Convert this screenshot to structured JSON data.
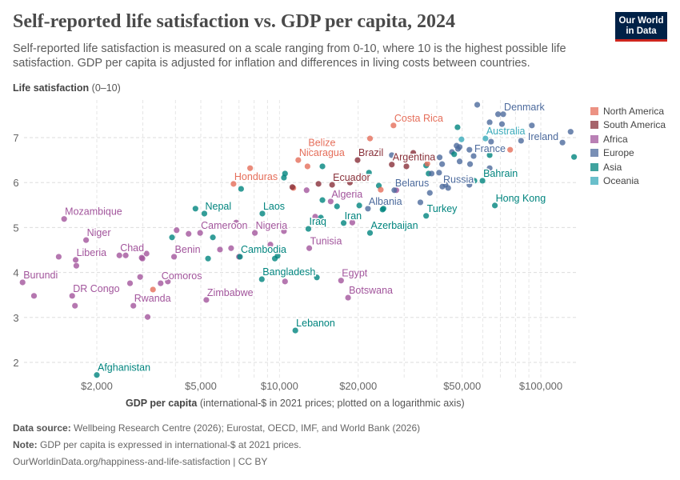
{
  "header": {
    "title": "Self-reported life satisfaction vs. GDP per capita, 2024",
    "subtitle": "Self-reported life satisfaction is measured on a scale ranging from 0-10, where 10 is the highest possible life satisfaction. GDP per capita is adjusted for inflation and differences in living costs between countries.",
    "logo": "Our World in Data"
  },
  "footer": {
    "source_label": "Data source:",
    "source": "Wellbeing Research Centre (2026); Eurostat, OECD, IMF, and World Bank (2026)",
    "note_label": "Note:",
    "note": "GDP per capita is expressed in international-$ at 2021 prices.",
    "url": "OurWorldinData.org/happiness-and-life-satisfaction | CC BY"
  },
  "chart_data": {
    "type": "scatter",
    "title": "Self-reported life satisfaction vs. GDP per capita, 2024",
    "ylabel_bold": "Life satisfaction",
    "ylabel_rest": "(0–10)",
    "xlabel_bold": "GDP per capita",
    "xlabel_rest": "(international-$ in 2021 prices; plotted on a logarithmic axis)",
    "x_scale": "log",
    "xlim": [
      980,
      136000
    ],
    "ylim": [
      1.6,
      7.85
    ],
    "grid": true,
    "legend_position": "right",
    "x_ticks": [
      {
        "v": 2000,
        "label": "$2,000"
      },
      {
        "v": 5000,
        "label": "$5,000"
      },
      {
        "v": 10000,
        "label": "$10,000"
      },
      {
        "v": 20000,
        "label": "$20,000"
      },
      {
        "v": 50000,
        "label": "$50,000"
      },
      {
        "v": 100000,
        "label": "$100,000"
      }
    ],
    "y_ticks": [
      {
        "v": 2,
        "label": "2"
      },
      {
        "v": 3,
        "label": "3"
      },
      {
        "v": 4,
        "label": "4"
      },
      {
        "v": 5,
        "label": "5"
      },
      {
        "v": 6,
        "label": "6"
      },
      {
        "v": 7,
        "label": "7"
      }
    ],
    "regions": [
      {
        "key": "NA",
        "name": "North America",
        "color": "#E56E5A"
      },
      {
        "key": "SA",
        "name": "South America",
        "color": "#883039"
      },
      {
        "key": "AF",
        "name": "Africa",
        "color": "#A2559C"
      },
      {
        "key": "EU",
        "name": "Europe",
        "color": "#4C6A9C"
      },
      {
        "key": "AS",
        "name": "Asia",
        "color": "#00847E"
      },
      {
        "key": "OC",
        "name": "Oceania",
        "color": "#38AABA"
      }
    ],
    "points": [
      {
        "label": "Mozambique",
        "r": "AF",
        "x": 1500,
        "y": 5.19
      },
      {
        "label": "Niger",
        "r": "AF",
        "x": 1820,
        "y": 4.72
      },
      {
        "label": "Liberia",
        "r": "AF",
        "x": 1660,
        "y": 4.28
      },
      {
        "label": "Burundi",
        "r": "AF",
        "x": 1040,
        "y": 3.78
      },
      {
        "label": "DR Congo",
        "r": "AF",
        "x": 1610,
        "y": 3.48
      },
      {
        "label": "Chad",
        "r": "AF",
        "x": 2440,
        "y": 4.38
      },
      {
        "label": "Rwanda",
        "r": "AF",
        "x": 2760,
        "y": 3.26
      },
      {
        "label": "Comoros",
        "r": "AF",
        "x": 3510,
        "y": 3.76
      },
      {
        "label": "Benin",
        "r": "AF",
        "x": 3950,
        "y": 4.35
      },
      {
        "label": "Cameroon",
        "r": "AF",
        "x": 4970,
        "y": 4.88
      },
      {
        "label": "Nepal",
        "r": "AS",
        "x": 5160,
        "y": 5.31
      },
      {
        "label": "Zimbabwe",
        "r": "AF",
        "x": 5250,
        "y": 3.39
      },
      {
        "label": "Cambodia",
        "r": "AS",
        "x": 7060,
        "y": 4.35
      },
      {
        "label": "Afghanistan",
        "r": "AS",
        "x": 2000,
        "y": 1.72
      },
      {
        "label": "Laos",
        "r": "AS",
        "x": 8600,
        "y": 5.31
      },
      {
        "label": "Nigeria",
        "r": "AF",
        "x": 8050,
        "y": 4.88
      },
      {
        "label": "Honduras",
        "r": "NA",
        "x": 6670,
        "y": 5.97
      },
      {
        "label": "Nicaragua",
        "r": "NA",
        "x": 11800,
        "y": 6.5
      },
      {
        "label": "Belize",
        "r": "NA",
        "x": 12800,
        "y": 6.72
      },
      {
        "label": "Brazil",
        "r": "SA",
        "x": 19900,
        "y": 6.5
      },
      {
        "label": "Ecuador",
        "r": "SA",
        "x": 15900,
        "y": 5.95
      },
      {
        "label": "Algeria",
        "r": "AF",
        "x": 15700,
        "y": 5.58
      },
      {
        "label": "Iraq",
        "r": "AS",
        "x": 12900,
        "y": 4.97
      },
      {
        "label": "Iran",
        "r": "AS",
        "x": 17600,
        "y": 5.1
      },
      {
        "label": "Tunisia",
        "r": "AF",
        "x": 13000,
        "y": 4.54
      },
      {
        "label": "Bangladesh",
        "r": "AS",
        "x": 8560,
        "y": 3.85
      },
      {
        "label": "Egypt",
        "r": "AF",
        "x": 17200,
        "y": 3.82
      },
      {
        "label": "Botswana",
        "r": "AF",
        "x": 18300,
        "y": 3.44
      },
      {
        "label": "Lebanon",
        "r": "AS",
        "x": 11500,
        "y": 2.71
      },
      {
        "label": "Albania",
        "r": "EU",
        "x": 21800,
        "y": 5.42
      },
      {
        "label": "Azerbaijan",
        "r": "AS",
        "x": 22200,
        "y": 4.88
      },
      {
        "label": "Costa Rica",
        "r": "NA",
        "x": 27300,
        "y": 7.27
      },
      {
        "label": "Argentina",
        "r": "SA",
        "x": 26900,
        "y": 6.4
      },
      {
        "label": "Belarus",
        "r": "EU",
        "x": 27500,
        "y": 5.83
      },
      {
        "label": "Turkey",
        "r": "AS",
        "x": 36400,
        "y": 5.26
      },
      {
        "label": "Russia",
        "r": "EU",
        "x": 42000,
        "y": 5.91
      },
      {
        "label": "Bahrain",
        "r": "AS",
        "x": 59800,
        "y": 6.04
      },
      {
        "label": "Hong Kong",
        "r": "AS",
        "x": 66700,
        "y": 5.49
      },
      {
        "label": "France",
        "r": "EU",
        "x": 55300,
        "y": 6.59
      },
      {
        "label": "Australia",
        "r": "OC",
        "x": 61400,
        "y": 6.98
      },
      {
        "label": "Denmark",
        "r": "EU",
        "x": 71800,
        "y": 7.52
      },
      {
        "label": "Ireland",
        "r": "EU",
        "x": 121000,
        "y": 6.89
      },
      {
        "r": "AF",
        "x": 1430,
        "y": 4.35
      },
      {
        "r": "AF",
        "x": 1670,
        "y": 4.15
      },
      {
        "r": "AF",
        "x": 1150,
        "y": 3.48
      },
      {
        "r": "AF",
        "x": 1650,
        "y": 3.26
      },
      {
        "r": "AF",
        "x": 2580,
        "y": 4.38
      },
      {
        "r": "AF",
        "x": 2970,
        "y": 4.33
      },
      {
        "r": "AF",
        "x": 2990,
        "y": 4.31
      },
      {
        "r": "AF",
        "x": 3100,
        "y": 4.42
      },
      {
        "r": "AF",
        "x": 2680,
        "y": 3.76
      },
      {
        "r": "AF",
        "x": 2930,
        "y": 3.9
      },
      {
        "r": "AF",
        "x": 3130,
        "y": 3.01
      },
      {
        "r": "NA",
        "x": 3280,
        "y": 3.62
      },
      {
        "r": "AF",
        "x": 3740,
        "y": 3.8
      },
      {
        "r": "AF",
        "x": 4040,
        "y": 4.94
      },
      {
        "r": "AS",
        "x": 3880,
        "y": 4.78
      },
      {
        "r": "AF",
        "x": 4490,
        "y": 4.86
      },
      {
        "r": "AS",
        "x": 4770,
        "y": 5.42
      },
      {
        "r": "AS",
        "x": 5560,
        "y": 4.78
      },
      {
        "r": "AS",
        "x": 5330,
        "y": 4.31
      },
      {
        "r": "AF",
        "x": 5920,
        "y": 4.51
      },
      {
        "r": "AF",
        "x": 6530,
        "y": 4.54
      },
      {
        "r": "AF",
        "x": 6830,
        "y": 5.11
      },
      {
        "r": "AF",
        "x": 7000,
        "y": 4.35
      },
      {
        "r": "AS",
        "x": 7130,
        "y": 5.86
      },
      {
        "r": "NA",
        "x": 7720,
        "y": 6.32
      },
      {
        "r": "NA",
        "x": 12800,
        "y": 6.36
      },
      {
        "r": "AS",
        "x": 14600,
        "y": 6.36
      },
      {
        "r": "AS",
        "x": 10500,
        "y": 6.2
      },
      {
        "r": "AS",
        "x": 10400,
        "y": 6.11
      },
      {
        "r": "SA",
        "x": 14100,
        "y": 5.97
      },
      {
        "r": "SA",
        "x": 18600,
        "y": 6.0
      },
      {
        "r": "EU",
        "x": 15900,
        "y": 6.66
      },
      {
        "r": "NA",
        "x": 22200,
        "y": 6.98
      },
      {
        "r": "EU",
        "x": 20800,
        "y": 6.13
      },
      {
        "r": "AS",
        "x": 22000,
        "y": 6.22
      },
      {
        "r": "NA",
        "x": 11300,
        "y": 5.88
      },
      {
        "r": "SA",
        "x": 11200,
        "y": 5.9
      },
      {
        "r": "AF",
        "x": 12700,
        "y": 5.83
      },
      {
        "r": "AS",
        "x": 14600,
        "y": 5.61
      },
      {
        "r": "AS",
        "x": 16600,
        "y": 5.47
      },
      {
        "r": "AS",
        "x": 20200,
        "y": 5.49
      },
      {
        "r": "AS",
        "x": 24800,
        "y": 5.4
      },
      {
        "r": "AS",
        "x": 24000,
        "y": 5.93
      },
      {
        "r": "NA",
        "x": 24400,
        "y": 5.84
      },
      {
        "r": "AF",
        "x": 13700,
        "y": 5.24
      },
      {
        "r": "AS",
        "x": 14400,
        "y": 5.22
      },
      {
        "r": "AF",
        "x": 19000,
        "y": 5.11
      },
      {
        "r": "AF",
        "x": 10400,
        "y": 4.92
      },
      {
        "r": "AF",
        "x": 9230,
        "y": 4.62
      },
      {
        "r": "AS",
        "x": 9600,
        "y": 4.31
      },
      {
        "r": "AS",
        "x": 9840,
        "y": 4.37
      },
      {
        "r": "AF",
        "x": 10500,
        "y": 3.8
      },
      {
        "r": "AS",
        "x": 13900,
        "y": 3.89
      },
      {
        "r": "EU",
        "x": 57100,
        "y": 7.73
      },
      {
        "r": "EU",
        "x": 68600,
        "y": 7.52
      },
      {
        "r": "EU",
        "x": 63700,
        "y": 7.34
      },
      {
        "r": "EU",
        "x": 71000,
        "y": 7.3
      },
      {
        "r": "EU",
        "x": 92400,
        "y": 7.27
      },
      {
        "r": "EU",
        "x": 130000,
        "y": 7.13
      },
      {
        "r": "AS",
        "x": 134000,
        "y": 6.57
      },
      {
        "r": "AS",
        "x": 48000,
        "y": 7.23
      },
      {
        "r": "OC",
        "x": 49700,
        "y": 6.96
      },
      {
        "r": "EU",
        "x": 64500,
        "y": 6.91
      },
      {
        "r": "EU",
        "x": 84000,
        "y": 6.93
      },
      {
        "r": "EU",
        "x": 47600,
        "y": 6.82
      },
      {
        "r": "EU",
        "x": 48900,
        "y": 6.79
      },
      {
        "r": "EU",
        "x": 48200,
        "y": 6.75
      },
      {
        "r": "EU",
        "x": 53300,
        "y": 6.73
      },
      {
        "r": "NA",
        "x": 76300,
        "y": 6.73
      },
      {
        "r": "EU",
        "x": 45700,
        "y": 6.68
      },
      {
        "r": "AS",
        "x": 46600,
        "y": 6.63
      },
      {
        "r": "AS",
        "x": 63700,
        "y": 6.61
      },
      {
        "r": "EU",
        "x": 63700,
        "y": 6.32
      },
      {
        "r": "EU",
        "x": 48900,
        "y": 6.47
      },
      {
        "r": "EU",
        "x": 53600,
        "y": 6.41
      },
      {
        "r": "EU",
        "x": 41000,
        "y": 6.56
      },
      {
        "r": "EU",
        "x": 41900,
        "y": 6.41
      },
      {
        "r": "EU",
        "x": 40800,
        "y": 6.22
      },
      {
        "r": "SA",
        "x": 32500,
        "y": 6.66
      },
      {
        "r": "EU",
        "x": 26900,
        "y": 6.61
      },
      {
        "r": "SA",
        "x": 30600,
        "y": 6.36
      },
      {
        "r": "AS",
        "x": 36400,
        "y": 6.38
      },
      {
        "r": "NA",
        "x": 36800,
        "y": 6.42
      },
      {
        "r": "AS",
        "x": 37200,
        "y": 6.2
      },
      {
        "r": "EU",
        "x": 38200,
        "y": 6.2
      },
      {
        "r": "EU",
        "x": 43200,
        "y": 5.95
      },
      {
        "r": "EU",
        "x": 44200,
        "y": 5.88
      },
      {
        "r": "EU",
        "x": 53300,
        "y": 5.95
      },
      {
        "r": "AS",
        "x": 55700,
        "y": 6.04
      },
      {
        "r": "EU",
        "x": 37600,
        "y": 5.77
      },
      {
        "r": "AF",
        "x": 28000,
        "y": 5.83
      },
      {
        "r": "AS",
        "x": 25000,
        "y": 5.42
      },
      {
        "r": "EU",
        "x": 34600,
        "y": 5.56
      }
    ]
  }
}
